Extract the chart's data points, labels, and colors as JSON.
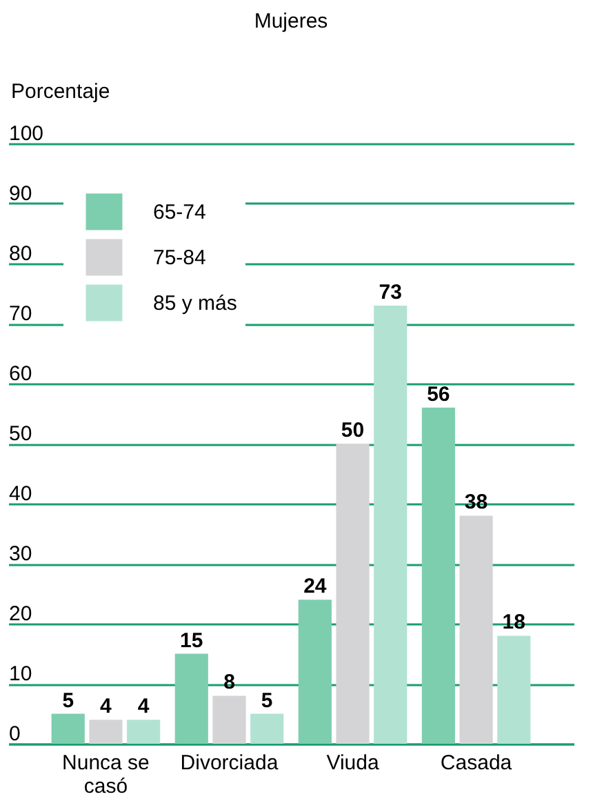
{
  "chart_data": {
    "type": "bar",
    "title": "Mujeres",
    "ylabel": "Porcentaje",
    "categories": [
      "Nunca se casó",
      "Divorciada",
      "Viuda",
      "Casada"
    ],
    "series": [
      {
        "name": "65-74",
        "color": "#7dceae",
        "values": [
          5,
          15,
          24,
          56
        ]
      },
      {
        "name": "75-84",
        "color": "#d4d4d6",
        "values": [
          4,
          8,
          50,
          38
        ]
      },
      {
        "name": "85 y más",
        "color": "#b2e2d2",
        "values": [
          4,
          5,
          73,
          18
        ]
      }
    ],
    "ylim": [
      0,
      100
    ],
    "yticks": [
      0,
      10,
      20,
      30,
      40,
      50,
      60,
      70,
      80,
      90,
      100
    ],
    "grid": "y",
    "legend": "top left",
    "data_labels": true
  }
}
